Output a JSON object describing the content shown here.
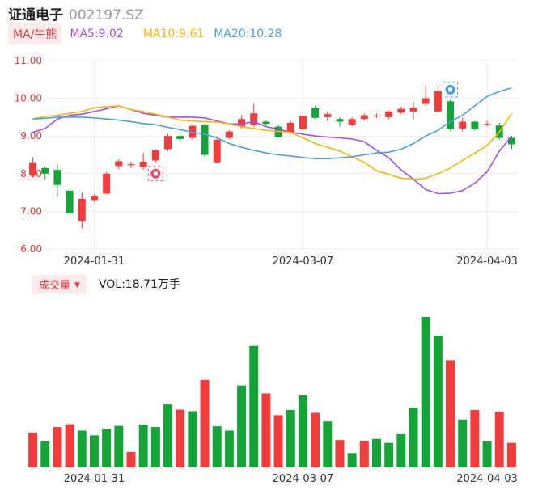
{
  "header": {
    "stock_name": "证通电子",
    "stock_code": "002197.SZ"
  },
  "ma_bar": {
    "tab_label": "MA/牛熊",
    "items": [
      {
        "label": "MA5:9.02",
        "color": "#a64ee8"
      },
      {
        "label": "MA10:9.61",
        "color": "#f5b800"
      },
      {
        "label": "MA20:10.28",
        "color": "#4a9ee8"
      }
    ]
  },
  "volume_bar": {
    "tab_label": "成交量",
    "value_label": "VOL:18.71万手"
  },
  "colors": {
    "up": "#f23b3b",
    "down": "#13a538",
    "grid": "#ececec",
    "bear_marker": "#f0436a",
    "bull_marker": "#3a9ef5"
  },
  "markers": {
    "bear_icon": "bear-icon",
    "bull_icon": "bull-icon"
  },
  "chart_data": [
    {
      "type": "candlestick",
      "y_ticks": [
        "11.00",
        "10.00",
        "9.00",
        "8.00",
        "7.00",
        "6.00"
      ],
      "ylim": [
        6.0,
        11.0
      ],
      "x_tick_labels": [
        {
          "label": "2024-01-31",
          "index": 5
        },
        {
          "label": "2024-03-07",
          "index": 22
        },
        {
          "label": "2024-04-03",
          "index": 37
        }
      ],
      "candles": [
        {
          "o": 7.97,
          "c": 8.3,
          "h": 8.43,
          "l": 7.9
        },
        {
          "o": 8.15,
          "c": 8.0,
          "h": 8.2,
          "l": 7.85
        },
        {
          "o": 8.1,
          "c": 7.7,
          "h": 8.25,
          "l": 7.4
        },
        {
          "o": 7.55,
          "c": 6.95,
          "h": 7.55,
          "l": 6.93
        },
        {
          "o": 6.75,
          "c": 7.33,
          "h": 7.5,
          "l": 6.55
        },
        {
          "o": 7.3,
          "c": 7.4,
          "h": 7.45,
          "l": 7.25
        },
        {
          "o": 7.47,
          "c": 8.0,
          "h": 8.05,
          "l": 7.45
        },
        {
          "o": 8.2,
          "c": 8.33,
          "h": 8.38,
          "l": 8.12
        },
        {
          "o": 8.23,
          "c": 8.25,
          "h": 8.32,
          "l": 8.15
        },
        {
          "o": 8.18,
          "c": 8.32,
          "h": 8.55,
          "l": 8.1
        },
        {
          "o": 8.35,
          "c": 8.62,
          "h": 8.65,
          "l": 8.3
        },
        {
          "o": 8.65,
          "c": 9.0,
          "h": 9.05,
          "l": 8.6
        },
        {
          "o": 9.0,
          "c": 8.92,
          "h": 9.1,
          "l": 8.85
        },
        {
          "o": 8.95,
          "c": 9.27,
          "h": 9.3,
          "l": 8.9
        },
        {
          "o": 9.3,
          "c": 8.5,
          "h": 9.32,
          "l": 8.45
        },
        {
          "o": 8.3,
          "c": 8.9,
          "h": 9.0,
          "l": 8.28
        },
        {
          "o": 8.95,
          "c": 9.12,
          "h": 9.15,
          "l": 8.92
        },
        {
          "o": 9.25,
          "c": 9.45,
          "h": 9.55,
          "l": 9.2
        },
        {
          "o": 9.3,
          "c": 9.6,
          "h": 9.85,
          "l": 9.25
        },
        {
          "o": 9.38,
          "c": 9.32,
          "h": 9.42,
          "l": 9.28
        },
        {
          "o": 9.25,
          "c": 8.97,
          "h": 9.3,
          "l": 8.95
        },
        {
          "o": 9.1,
          "c": 9.35,
          "h": 9.4,
          "l": 9.05
        },
        {
          "o": 9.18,
          "c": 9.52,
          "h": 9.65,
          "l": 9.15
        },
        {
          "o": 9.75,
          "c": 9.48,
          "h": 9.8,
          "l": 9.45
        },
        {
          "o": 9.5,
          "c": 9.58,
          "h": 9.65,
          "l": 9.4
        },
        {
          "o": 9.45,
          "c": 9.38,
          "h": 9.5,
          "l": 9.25
        },
        {
          "o": 9.3,
          "c": 9.45,
          "h": 9.5,
          "l": 9.25
        },
        {
          "o": 9.45,
          "c": 9.55,
          "h": 9.6,
          "l": 9.4
        },
        {
          "o": 9.52,
          "c": 9.54,
          "h": 9.6,
          "l": 9.48
        },
        {
          "o": 9.5,
          "c": 9.65,
          "h": 9.67,
          "l": 9.45
        },
        {
          "o": 9.62,
          "c": 9.72,
          "h": 9.78,
          "l": 9.58
        },
        {
          "o": 9.65,
          "c": 9.75,
          "h": 9.9,
          "l": 9.45
        },
        {
          "o": 9.85,
          "c": 10.0,
          "h": 10.35,
          "l": 9.8
        },
        {
          "o": 9.65,
          "c": 10.2,
          "h": 10.35,
          "l": 9.6
        },
        {
          "o": 9.92,
          "c": 9.18,
          "h": 9.95,
          "l": 9.15
        },
        {
          "o": 9.2,
          "c": 9.38,
          "h": 9.5,
          "l": 9.12
        },
        {
          "o": 9.38,
          "c": 9.18,
          "h": 9.4,
          "l": 9.15
        },
        {
          "o": 9.3,
          "c": 9.32,
          "h": 9.4,
          "l": 9.25
        },
        {
          "o": 9.28,
          "c": 8.95,
          "h": 9.35,
          "l": 8.9
        },
        {
          "o": 8.95,
          "c": 8.78,
          "h": 9.0,
          "l": 8.65
        }
      ],
      "series": [
        {
          "name": "MA5",
          "color": "#a64ee8",
          "values": [
            9.1,
            9.2,
            9.45,
            9.55,
            9.58,
            9.65,
            9.72,
            9.8,
            9.7,
            9.6,
            9.55,
            9.5,
            9.5,
            9.5,
            9.48,
            9.4,
            9.32,
            9.32,
            9.38,
            9.25,
            9.18,
            9.1,
            9.05,
            9.0,
            8.97,
            8.95,
            8.92,
            8.85,
            8.62,
            8.42,
            8.1,
            7.85,
            7.58,
            7.47,
            7.48,
            7.55,
            7.75,
            8.05,
            8.6,
            9.0
          ]
        },
        {
          "name": "MA10",
          "color": "#f5b800",
          "values": [
            9.45,
            9.52,
            9.55,
            9.6,
            9.65,
            9.75,
            9.78,
            9.8,
            9.7,
            9.65,
            9.58,
            9.5,
            9.42,
            9.4,
            9.38,
            9.37,
            9.32,
            9.25,
            9.2,
            9.15,
            9.12,
            9.1,
            8.95,
            8.8,
            8.7,
            8.6,
            8.45,
            8.3,
            8.08,
            7.98,
            7.88,
            7.85,
            7.88,
            8.0,
            8.15,
            8.35,
            8.55,
            8.75,
            9.1,
            9.6
          ]
        },
        {
          "name": "MA20",
          "color": "#4a9ee8",
          "values": [
            9.45,
            9.47,
            9.5,
            9.5,
            9.5,
            9.48,
            9.45,
            9.42,
            9.38,
            9.33,
            9.3,
            9.23,
            9.17,
            9.1,
            9.05,
            8.95,
            8.8,
            8.7,
            8.62,
            8.55,
            8.5,
            8.47,
            8.43,
            8.4,
            8.4,
            8.42,
            8.45,
            8.5,
            8.55,
            8.57,
            8.65,
            8.8,
            9.0,
            9.15,
            9.38,
            9.55,
            9.8,
            10.05,
            10.18,
            10.28
          ]
        }
      ],
      "bear_marker_index": 10,
      "bull_marker_index": 34
    },
    {
      "type": "bar",
      "values": [
        0.88,
        0.66,
        1.02,
        1.09,
        0.93,
        0.81,
        0.97,
        1.05,
        0.39,
        1.08,
        1.02,
        1.59,
        1.46,
        1.42,
        2.21,
        1.04,
        0.93,
        2.07,
        3.07,
        1.87,
        1.32,
        1.45,
        1.82,
        1.38,
        1.16,
        0.69,
        0.36,
        0.67,
        0.72,
        0.62,
        0.84,
        1.5,
        3.8,
        3.33,
        2.71,
        1.21,
        1.45,
        0.66,
        1.41,
        0.62
      ],
      "up": [
        true,
        false,
        true,
        true,
        false,
        false,
        false,
        false,
        true,
        false,
        false,
        false,
        true,
        false,
        true,
        false,
        false,
        false,
        false,
        true,
        true,
        false,
        false,
        true,
        false,
        true,
        false,
        true,
        false,
        false,
        false,
        false,
        false,
        false,
        true,
        false,
        true,
        false,
        true,
        true
      ]
    }
  ]
}
